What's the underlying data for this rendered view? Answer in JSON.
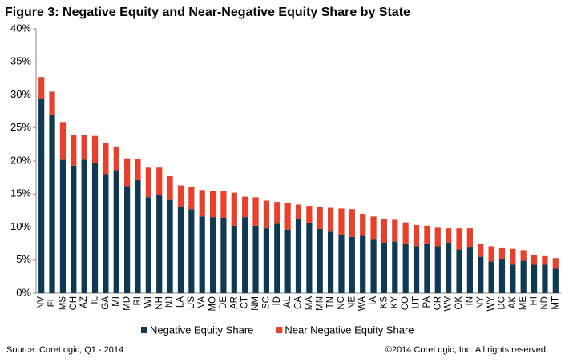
{
  "chart_data": {
    "type": "stacked_bar",
    "title": "Figure 3: Negative Equity and Near-Negative Equity Share by State",
    "categories": [
      "NV",
      "FL",
      "MS",
      "OH",
      "AZ",
      "IL",
      "GA",
      "MI",
      "MD",
      "RI",
      "WI",
      "NH",
      "NJ",
      "LA",
      "US",
      "VA",
      "MO",
      "DE",
      "AR",
      "CT",
      "NM",
      "SC",
      "ID",
      "AL",
      "CA",
      "MA",
      "MN",
      "TN",
      "NC",
      "NE",
      "WA",
      "IA",
      "KS",
      "KY",
      "CO",
      "UT",
      "PA",
      "OR",
      "WV",
      "OK",
      "IN",
      "NY",
      "WY",
      "DC",
      "AK",
      "ME",
      "HI",
      "ND",
      "MT"
    ],
    "series": [
      {
        "name": "Negative Equity Share",
        "color": "#0e3a52",
        "values": [
          29.5,
          27,
          20.2,
          19.3,
          20.2,
          19.7,
          18,
          18.6,
          16.2,
          17.1,
          14.5,
          14.9,
          14.1,
          13,
          12.7,
          11.6,
          11.5,
          11.4,
          10.2,
          11.5,
          10.2,
          9.8,
          10.5,
          9.6,
          11.2,
          10.7,
          9.7,
          9.3,
          8.8,
          8.5,
          8.7,
          8.1,
          7.6,
          7.8,
          7.4,
          7.1,
          7.4,
          7.1,
          7.6,
          6.6,
          6.9,
          5.5,
          4.8,
          5.2,
          4.3,
          4.9,
          4.3,
          4.3,
          3.7
        ]
      },
      {
        "name": "Near Negative Equity Share",
        "color": "#e8402a",
        "values": [
          3.2,
          3.5,
          5.7,
          4.7,
          3.7,
          4.1,
          4.7,
          3.6,
          4.2,
          3.2,
          4.5,
          4.1,
          3.6,
          3.3,
          3.3,
          4.0,
          4.0,
          4.0,
          5.0,
          3.1,
          4.3,
          4.2,
          3.3,
          4.1,
          2.2,
          2.5,
          3.3,
          3.6,
          4.0,
          4.2,
          3.3,
          3.5,
          3.6,
          3.3,
          3.3,
          3.2,
          2.8,
          2.8,
          2.2,
          3.2,
          2.9,
          1.9,
          2.3,
          1.6,
          2.4,
          1.6,
          1.5,
          1.3,
          1.6
        ]
      }
    ],
    "ylim": [
      0,
      40
    ],
    "yticks": [
      {
        "value": 0,
        "label": "0%"
      },
      {
        "value": 5,
        "label": "5%"
      },
      {
        "value": 10,
        "label": "10%"
      },
      {
        "value": 15,
        "label": "15%"
      },
      {
        "value": 20,
        "label": "20%"
      },
      {
        "value": 25,
        "label": "25%"
      },
      {
        "value": 30,
        "label": "30%"
      },
      {
        "value": 35,
        "label": "35%"
      },
      {
        "value": 40,
        "label": "40%"
      }
    ],
    "source": "Source: CoreLogic, Q1 - 2014",
    "copyright": "©2014 CoreLogic, Inc. All rights reserved."
  }
}
